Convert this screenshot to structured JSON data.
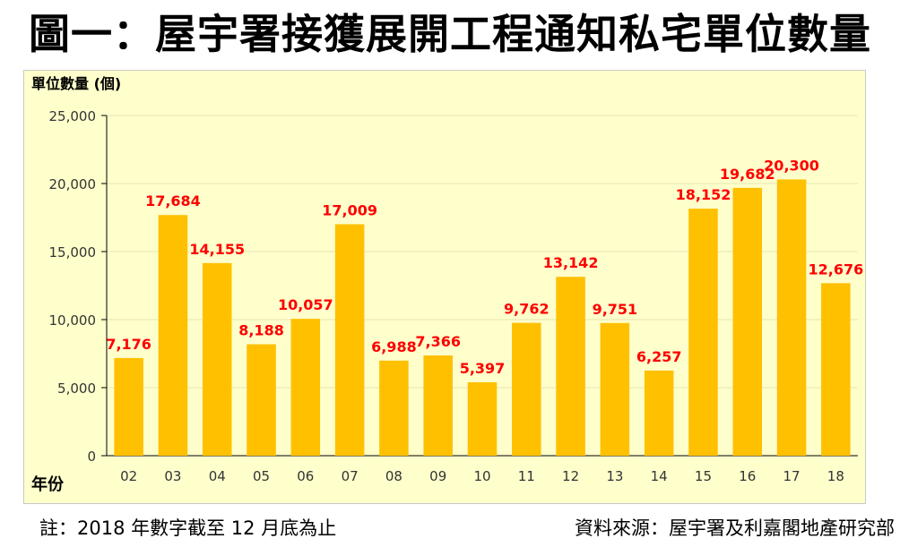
{
  "title": "圖一：屋宇署接獲展開工程通知私宅單位數量",
  "footer": {
    "note": "註：2018 年數字截至 12 月底為止",
    "source": "資料來源：屋宇署及利嘉閣地產研究部"
  },
  "colors": {
    "bar": "#ffc000",
    "label": "#ff0000",
    "plot_bg": "#ffffcc",
    "grid": "#e6e6b3"
  },
  "chart_data": {
    "type": "bar",
    "ylabel": "單位數量 (個)",
    "xlabel": "年份",
    "ylim": [
      0,
      25000
    ],
    "yticks": [
      "0",
      "5,000",
      "10,000",
      "15,000",
      "20,000",
      "25,000"
    ],
    "ytick_values": [
      0,
      5000,
      10000,
      15000,
      20000,
      25000
    ],
    "categories": [
      "02",
      "03",
      "04",
      "05",
      "06",
      "07",
      "08",
      "09",
      "10",
      "11",
      "12",
      "13",
      "14",
      "15",
      "16",
      "17",
      "18"
    ],
    "values": [
      7176,
      17684,
      14155,
      8188,
      10057,
      17009,
      6988,
      7366,
      5397,
      9762,
      13142,
      9751,
      6257,
      18152,
      19682,
      20300,
      12676
    ],
    "data_labels": [
      "7,176",
      "17,684",
      "14,155",
      "8,188",
      "10,057",
      "17,009",
      "6,988",
      "7,366",
      "5,397",
      "9,762",
      "13,142",
      "9,751",
      "6,257",
      "18,152",
      "19,682",
      "20,300",
      "12,676"
    ],
    "grid": true
  }
}
